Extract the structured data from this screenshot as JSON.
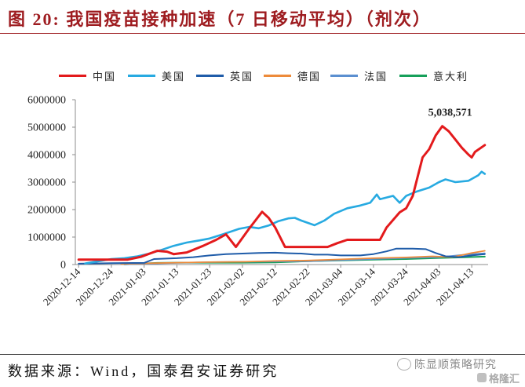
{
  "footer": {
    "source": "数据来源：Wind，国泰君安证券研究"
  },
  "watermark": {
    "account": "陈显顺策略研究",
    "brand": "格隆汇",
    "account_icon": "wechat-icon",
    "brand_icon": "gelonghui-logo-icon"
  },
  "chart_data": {
    "type": "line",
    "title": "图 20: 我国疫苗接种加速（7 日移动平均）（剂次）",
    "legend": "top",
    "grid": false,
    "xlim": [
      "2020-12-13",
      "2021-04-18"
    ],
    "ylim": [
      0,
      6000000
    ],
    "y_ticks": [
      0,
      1000000,
      2000000,
      3000000,
      4000000,
      5000000,
      6000000
    ],
    "y_tick_labels": [
      "0",
      "1000000",
      "2000000",
      "3000000",
      "4000000",
      "5000000",
      "6000000"
    ],
    "x_tick_labels": [
      "2020-12-14",
      "2020-12-24",
      "2021-01-03",
      "2021-01-13",
      "2021-01-23",
      "2021-02-02",
      "2021-02-12",
      "2021-02-22",
      "2021-03-04",
      "2021-03-14",
      "2021-03-24",
      "2021-04-03",
      "2021-04-13"
    ],
    "annotations": [
      {
        "text": "5,038,571",
        "x": "2021-04-04",
        "y": 5038571
      }
    ],
    "series": [
      {
        "name": "中国",
        "color": "#e31a1c",
        "points": [
          [
            "2020-12-14",
            180000
          ],
          [
            "2020-12-29",
            180000
          ],
          [
            "2021-01-02",
            280000
          ],
          [
            "2021-01-07",
            500000
          ],
          [
            "2021-01-10",
            470000
          ],
          [
            "2021-01-12",
            380000
          ],
          [
            "2021-01-16",
            440000
          ],
          [
            "2021-01-21",
            680000
          ],
          [
            "2021-01-25",
            900000
          ],
          [
            "2021-01-28",
            1100000
          ],
          [
            "2021-01-31",
            640000
          ],
          [
            "2021-02-04",
            1300000
          ],
          [
            "2021-02-08",
            1920000
          ],
          [
            "2021-02-10",
            1700000
          ],
          [
            "2021-02-12",
            1350000
          ],
          [
            "2021-02-15",
            640000
          ],
          [
            "2021-02-28",
            640000
          ],
          [
            "2021-03-03",
            780000
          ],
          [
            "2021-03-06",
            900000
          ],
          [
            "2021-03-16",
            900000
          ],
          [
            "2021-03-18",
            1350000
          ],
          [
            "2021-03-22",
            1900000
          ],
          [
            "2021-03-24",
            2050000
          ],
          [
            "2021-03-26",
            2500000
          ],
          [
            "2021-03-29",
            3900000
          ],
          [
            "2021-03-31",
            4200000
          ],
          [
            "2021-04-02",
            4700000
          ],
          [
            "2021-04-04",
            5038571
          ],
          [
            "2021-04-06",
            4850000
          ],
          [
            "2021-04-08",
            4550000
          ],
          [
            "2021-04-10",
            4250000
          ],
          [
            "2021-04-12",
            4000000
          ],
          [
            "2021-04-13",
            3900000
          ],
          [
            "2021-04-14",
            4100000
          ],
          [
            "2021-04-17",
            4350000
          ]
        ]
      },
      {
        "name": "美国",
        "color": "#27aae1",
        "points": [
          [
            "2020-12-16",
            40000
          ],
          [
            "2020-12-20",
            120000
          ],
          [
            "2020-12-24",
            200000
          ],
          [
            "2020-12-28",
            230000
          ],
          [
            "2021-01-01",
            300000
          ],
          [
            "2021-01-04",
            380000
          ],
          [
            "2021-01-08",
            520000
          ],
          [
            "2021-01-12",
            680000
          ],
          [
            "2021-01-16",
            800000
          ],
          [
            "2021-01-20",
            880000
          ],
          [
            "2021-01-23",
            950000
          ],
          [
            "2021-01-27",
            1100000
          ],
          [
            "2021-02-01",
            1300000
          ],
          [
            "2021-02-04",
            1370000
          ],
          [
            "2021-02-07",
            1320000
          ],
          [
            "2021-02-10",
            1420000
          ],
          [
            "2021-02-13",
            1580000
          ],
          [
            "2021-02-16",
            1680000
          ],
          [
            "2021-02-18",
            1700000
          ],
          [
            "2021-02-20",
            1600000
          ],
          [
            "2021-02-24",
            1430000
          ],
          [
            "2021-02-27",
            1600000
          ],
          [
            "2021-03-02",
            1850000
          ],
          [
            "2021-03-06",
            2050000
          ],
          [
            "2021-03-10",
            2150000
          ],
          [
            "2021-03-13",
            2250000
          ],
          [
            "2021-03-15",
            2550000
          ],
          [
            "2021-03-16",
            2380000
          ],
          [
            "2021-03-20",
            2500000
          ],
          [
            "2021-03-22",
            2250000
          ],
          [
            "2021-03-24",
            2500000
          ],
          [
            "2021-03-27",
            2650000
          ],
          [
            "2021-03-31",
            2800000
          ],
          [
            "2021-04-03",
            3000000
          ],
          [
            "2021-04-05",
            3100000
          ],
          [
            "2021-04-08",
            3000000
          ],
          [
            "2021-04-12",
            3050000
          ],
          [
            "2021-04-15",
            3250000
          ],
          [
            "2021-04-16",
            3380000
          ],
          [
            "2021-04-17",
            3300000
          ]
        ]
      },
      {
        "name": "英国",
        "color": "#1f5ca9",
        "points": [
          [
            "2020-12-14",
            30000
          ],
          [
            "2020-12-24",
            50000
          ],
          [
            "2021-01-03",
            60000
          ],
          [
            "2021-01-06",
            200000
          ],
          [
            "2021-01-13",
            230000
          ],
          [
            "2021-01-18",
            270000
          ],
          [
            "2021-01-23",
            330000
          ],
          [
            "2021-01-28",
            380000
          ],
          [
            "2021-02-02",
            400000
          ],
          [
            "2021-02-07",
            420000
          ],
          [
            "2021-02-12",
            430000
          ],
          [
            "2021-02-16",
            410000
          ],
          [
            "2021-02-20",
            400000
          ],
          [
            "2021-02-24",
            360000
          ],
          [
            "2021-02-28",
            360000
          ],
          [
            "2021-03-04",
            330000
          ],
          [
            "2021-03-10",
            330000
          ],
          [
            "2021-03-14",
            380000
          ],
          [
            "2021-03-18",
            480000
          ],
          [
            "2021-03-21",
            580000
          ],
          [
            "2021-03-26",
            580000
          ],
          [
            "2021-03-30",
            560000
          ],
          [
            "2021-04-02",
            420000
          ],
          [
            "2021-04-05",
            300000
          ],
          [
            "2021-04-09",
            270000
          ],
          [
            "2021-04-13",
            330000
          ],
          [
            "2021-04-17",
            380000
          ]
        ]
      },
      {
        "name": "德国",
        "color": "#ed8b3a",
        "points": [
          [
            "2020-12-27",
            20000
          ],
          [
            "2021-01-05",
            50000
          ],
          [
            "2021-01-13",
            70000
          ],
          [
            "2021-01-23",
            90000
          ],
          [
            "2021-02-02",
            100000
          ],
          [
            "2021-02-12",
            130000
          ],
          [
            "2021-02-22",
            150000
          ],
          [
            "2021-03-04",
            190000
          ],
          [
            "2021-03-14",
            230000
          ],
          [
            "2021-03-24",
            260000
          ],
          [
            "2021-04-01",
            300000
          ],
          [
            "2021-04-07",
            270000
          ],
          [
            "2021-04-13",
            420000
          ],
          [
            "2021-04-17",
            500000
          ]
        ]
      },
      {
        "name": "法国",
        "color": "#5b8fd0",
        "points": [
          [
            "2020-12-28",
            5000
          ],
          [
            "2021-01-07",
            40000
          ],
          [
            "2021-01-13",
            60000
          ],
          [
            "2021-01-23",
            90000
          ],
          [
            "2021-02-02",
            100000
          ],
          [
            "2021-02-12",
            110000
          ],
          [
            "2021-02-22",
            120000
          ],
          [
            "2021-03-04",
            160000
          ],
          [
            "2021-03-14",
            200000
          ],
          [
            "2021-03-24",
            240000
          ],
          [
            "2021-04-03",
            270000
          ],
          [
            "2021-04-10",
            350000
          ],
          [
            "2021-04-17",
            410000
          ]
        ]
      },
      {
        "name": "意大利",
        "color": "#16a05a",
        "points": [
          [
            "2020-12-28",
            5000
          ],
          [
            "2021-01-07",
            60000
          ],
          [
            "2021-01-13",
            70000
          ],
          [
            "2021-01-23",
            70000
          ],
          [
            "2021-02-02",
            70000
          ],
          [
            "2021-02-12",
            80000
          ],
          [
            "2021-02-22",
            120000
          ],
          [
            "2021-03-04",
            150000
          ],
          [
            "2021-03-14",
            180000
          ],
          [
            "2021-03-24",
            200000
          ],
          [
            "2021-04-03",
            240000
          ],
          [
            "2021-04-10",
            260000
          ],
          [
            "2021-04-17",
            290000
          ]
        ]
      }
    ]
  }
}
